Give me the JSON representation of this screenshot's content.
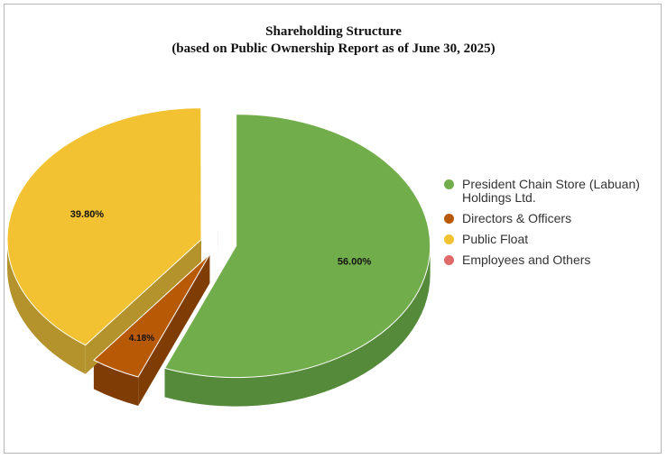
{
  "chart_data": {
    "type": "pie",
    "title": "Shareholding Structure",
    "subtitle": "(based on Public Ownership Report as of June 30, 2025)",
    "slices": [
      {
        "name": "President Chain Store (Labuan) Holdings Ltd.",
        "value": 56.0,
        "label": "56.00%",
        "color": "#72ad4b",
        "side_color": "#548a3a"
      },
      {
        "name": "Directors & Officers",
        "value": 4.18,
        "label": "4.18%",
        "color": "#b85a05",
        "side_color": "#7f3d05"
      },
      {
        "name": "Public Float",
        "value": 39.8,
        "label": "39.80%",
        "color": "#f2c232",
        "side_color": "#b4932c"
      },
      {
        "name": "Employees and Others",
        "value": 0.02,
        "label": "",
        "color": "#e06a6a",
        "side_color": "#b04a4a"
      }
    ],
    "legend": {
      "position": "right"
    }
  }
}
